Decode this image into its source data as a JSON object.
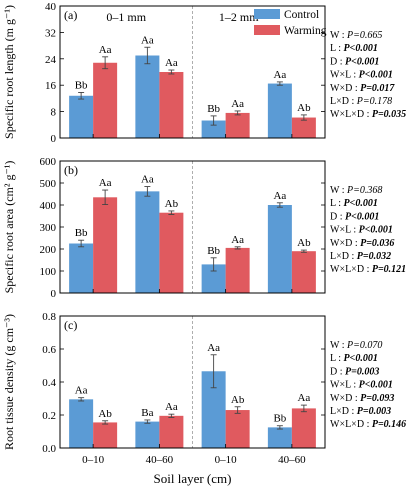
{
  "figure": {
    "xlabel": "Soil layer (cm)",
    "layer_labels": [
      "0–1 mm",
      "1–2 mm"
    ],
    "legend": [
      "Control",
      "Warming"
    ]
  },
  "colors": {
    "control": "#5b9bd5",
    "warming": "#e05a5f",
    "error": "#444444",
    "divider": "#9a9a9a"
  },
  "chart_data": [
    {
      "type": "bar",
      "panel": "(a)",
      "ylabel": "Specific root length (m g⁻¹)",
      "ylim": [
        0,
        40
      ],
      "yticks": [
        0,
        8,
        16,
        24,
        32,
        40
      ],
      "categories": [
        "0–10",
        "40–60",
        "0–10",
        "40–60"
      ],
      "series": [
        {
          "name": "Control",
          "values": [
            12.8,
            25.0,
            5.3,
            16.5
          ],
          "errors": [
            1.0,
            2.5,
            1.4,
            0.5
          ],
          "letters": [
            "Bb",
            "Aa",
            "Bb",
            "Aa"
          ]
        },
        {
          "name": "Warming",
          "values": [
            22.8,
            20.0,
            7.6,
            6.2
          ],
          "errors": [
            1.8,
            0.6,
            0.6,
            0.8
          ],
          "letters": [
            "Aa",
            "Aa",
            "Aa",
            "Ab"
          ]
        }
      ],
      "stats": [
        {
          "term": "W",
          "text": "P=0.665",
          "bold": false
        },
        {
          "term": "L",
          "text": "P<0.001",
          "bold": true
        },
        {
          "term": "D",
          "text": "P<0.001",
          "bold": true
        },
        {
          "term": "W×L",
          "text": "P<0.001",
          "bold": true
        },
        {
          "term": "W×D",
          "text": "P=0.017",
          "bold": true
        },
        {
          "term": "L×D",
          "text": "P=0.178",
          "bold": false
        },
        {
          "term": "W×L×D",
          "text": "P=0.035",
          "bold": true
        }
      ]
    },
    {
      "type": "bar",
      "panel": "(b)",
      "ylabel": "Specific root area (cm² g⁻¹)",
      "ylim": [
        0,
        600
      ],
      "yticks": [
        0,
        100,
        200,
        300,
        400,
        500,
        600
      ],
      "categories": [
        "0–10",
        "40–60",
        "0–10",
        "40–60"
      ],
      "series": [
        {
          "name": "Control",
          "values": [
            225,
            462,
            130,
            400
          ],
          "errors": [
            15,
            22,
            30,
            10
          ],
          "letters": [
            "Bb",
            "Aa",
            "Bb",
            "Aa"
          ]
        },
        {
          "name": "Warming",
          "values": [
            435,
            365,
            205,
            190
          ],
          "errors": [
            33,
            8,
            5,
            5
          ],
          "letters": [
            "Aa",
            "Ab",
            "Aa",
            "Ab"
          ]
        }
      ],
      "stats": [
        {
          "term": "W",
          "text": "P=0.368",
          "bold": false
        },
        {
          "term": "L",
          "text": "P<0.001",
          "bold": true
        },
        {
          "term": "D",
          "text": "P<0.001",
          "bold": true
        },
        {
          "term": "W×L",
          "text": "P<0.001",
          "bold": true
        },
        {
          "term": "W×D",
          "text": "P=0.036",
          "bold": true
        },
        {
          "term": "L×D",
          "text": "P=0.032",
          "bold": true
        },
        {
          "term": "W×L×D",
          "text": "P=0.121",
          "bold": true
        }
      ]
    },
    {
      "type": "bar",
      "panel": "(c)",
      "ylabel": "Root tissue density (g cm⁻³)",
      "ylim": [
        0,
        0.8
      ],
      "yticks": [
        0.0,
        0.2,
        0.4,
        0.6,
        0.8
      ],
      "categories": [
        "0–10",
        "40–60",
        "0–10",
        "40–60"
      ],
      "series": [
        {
          "name": "Control",
          "values": [
            0.295,
            0.16,
            0.465,
            0.125
          ],
          "errors": [
            0.01,
            0.01,
            0.1,
            0.01
          ],
          "letters": [
            "Aa",
            "Ba",
            "Aa",
            "Bb"
          ]
        },
        {
          "name": "Warming",
          "values": [
            0.155,
            0.195,
            0.23,
            0.24
          ],
          "errors": [
            0.01,
            0.01,
            0.02,
            0.02
          ],
          "letters": [
            "Ab",
            "Aa",
            "Ab",
            "Aa"
          ]
        }
      ],
      "stats": [
        {
          "term": "W",
          "text": "P=0.070",
          "bold": false
        },
        {
          "term": "L",
          "text": "P<0.001",
          "bold": true
        },
        {
          "term": "D",
          "text": "P=0.003",
          "bold": true
        },
        {
          "term": "W×L",
          "text": "P<0.001",
          "bold": true
        },
        {
          "term": "W×D",
          "text": "P=0.093",
          "bold": true
        },
        {
          "term": "L×D",
          "text": "P=0.003",
          "bold": true
        },
        {
          "term": "W×L×D",
          "text": "P=0.146",
          "bold": true
        }
      ]
    }
  ]
}
